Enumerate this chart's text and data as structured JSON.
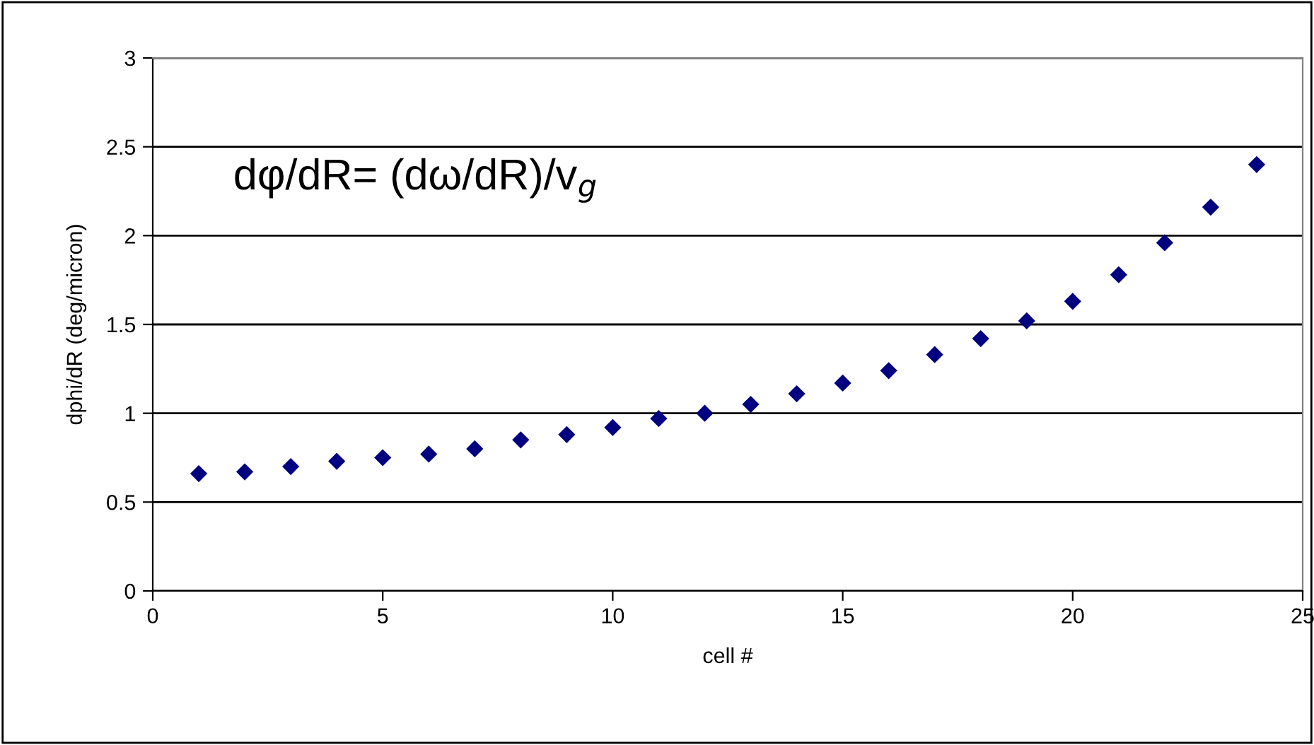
{
  "chart_data": {
    "type": "scatter",
    "xlabel": "cell #",
    "ylabel": "dphi/dR (deg/micron)",
    "annotations": [
      "dφ/dR= (dω/dR)/v$_{g}$"
    ],
    "x": [
      1,
      2,
      3,
      4,
      5,
      6,
      7,
      8,
      9,
      10,
      11,
      12,
      13,
      14,
      15,
      16,
      17,
      18,
      19,
      20,
      21,
      22,
      23,
      24
    ],
    "values": [
      0.66,
      0.67,
      0.7,
      0.73,
      0.75,
      0.77,
      0.8,
      0.85,
      0.88,
      0.92,
      0.97,
      1.0,
      1.05,
      1.11,
      1.17,
      1.24,
      1.33,
      1.42,
      1.52,
      1.63,
      1.78,
      1.96,
      2.16,
      2.4
    ],
    "color": "#000080",
    "marker": "diamond",
    "xlim": [
      0,
      25
    ],
    "xticks": [
      0,
      5,
      10,
      15,
      20,
      25
    ],
    "ylim": [
      0,
      3
    ],
    "yticks": [
      0,
      0.5,
      1,
      1.5,
      2,
      2.5,
      3
    ],
    "grid": "y",
    "legend": false
  }
}
